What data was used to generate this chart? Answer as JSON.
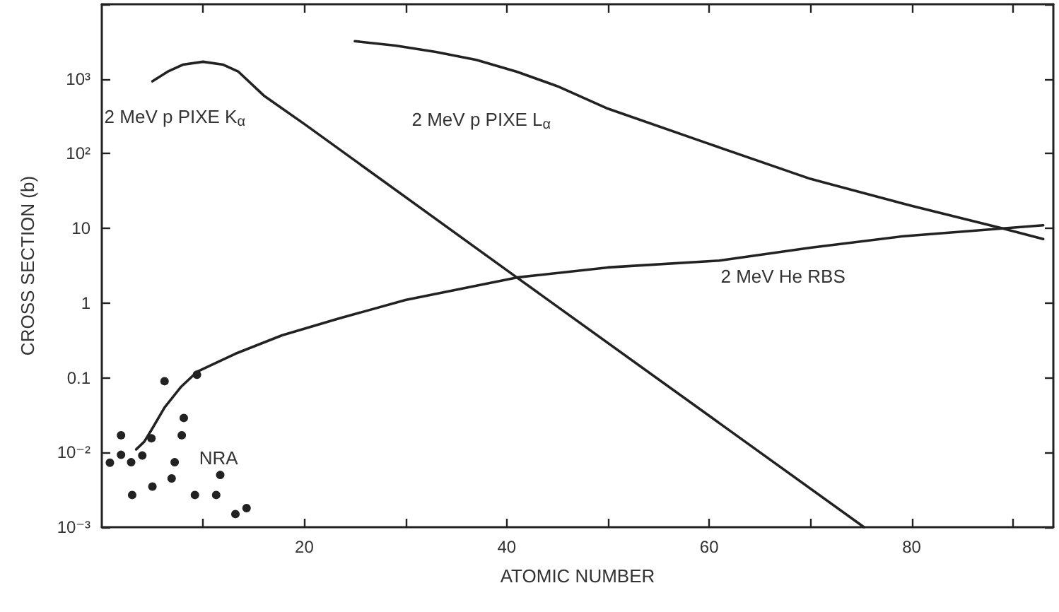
{
  "chart_data": {
    "type": "line",
    "xlabel": "ATOMIC NUMBER",
    "ylabel": "CROSS SECTION (b)",
    "log": "y",
    "grid": false,
    "legend": false,
    "xlim": [
      0,
      94
    ],
    "ylim": [
      0.001,
      10000
    ],
    "xticks": [
      {
        "value": 10,
        "label": null
      },
      20,
      {
        "value": 30,
        "label": null
      },
      40,
      {
        "value": 50,
        "label": null
      },
      60,
      {
        "value": 70,
        "label": null
      },
      80,
      {
        "value": 90,
        "label": null
      }
    ],
    "yticks": [
      {
        "value": 0.001,
        "label": "10⁻³"
      },
      {
        "value": 0.01,
        "label": "10⁻²"
      },
      0.1,
      1,
      10,
      {
        "value": 100,
        "label": "10²"
      },
      {
        "value": 1000,
        "label": "10³"
      },
      {
        "value": 10000,
        "label": null
      }
    ],
    "series": [
      {
        "name": "2 MeV p PIXE K$_{α}$",
        "color": "#222222",
        "marker": "none",
        "x": [
          5,
          6.5,
          8,
          10,
          12,
          13.5,
          16,
          20,
          41,
          75.3
        ],
        "values": [
          930,
          1250,
          1550,
          1700,
          1550,
          1250,
          600,
          250,
          2.2,
          0.001
        ]
      },
      {
        "name": "2 MeV p PIXE L$_{α}$",
        "color": "#222222",
        "marker": "none",
        "x": [
          25,
          29,
          33,
          37,
          41,
          45,
          50,
          60,
          70,
          80,
          89,
          93
        ],
        "values": [
          3200,
          2800,
          2300,
          1800,
          1250,
          800,
          400,
          135,
          46,
          20,
          10,
          7.2
        ]
      },
      {
        "name": "2 MeV He RBS",
        "color": "#222222",
        "marker": "none",
        "x": [
          3.4,
          4.2,
          4.9,
          6.2,
          7.8,
          9.4,
          13.2,
          17.8,
          23.4,
          30,
          41,
          50,
          61,
          70,
          79,
          93
        ],
        "values": [
          0.011,
          0.014,
          0.02,
          0.04,
          0.075,
          0.12,
          0.21,
          0.37,
          0.62,
          1.1,
          2.2,
          3,
          3.7,
          5.5,
          7.8,
          11
        ]
      },
      {
        "name": "NRA",
        "type": "scatter",
        "color": "#222222",
        "marker": "circle",
        "x": [
          0.8,
          1.9,
          1.9,
          2.9,
          3,
          4,
          4.9,
          5,
          6.2,
          6.9,
          7.2,
          7.9,
          8.1,
          9.2,
          9.4,
          11.3,
          11.7,
          13.2,
          14.3
        ],
        "values": [
          0.0073,
          0.017,
          0.0093,
          0.0074,
          0.0027,
          0.0091,
          0.0155,
          0.0035,
          0.09,
          0.0045,
          0.0074,
          0.017,
          0.029,
          0.0027,
          0.11,
          0.0027,
          0.005,
          0.0015,
          0.0018
        ]
      }
    ]
  }
}
